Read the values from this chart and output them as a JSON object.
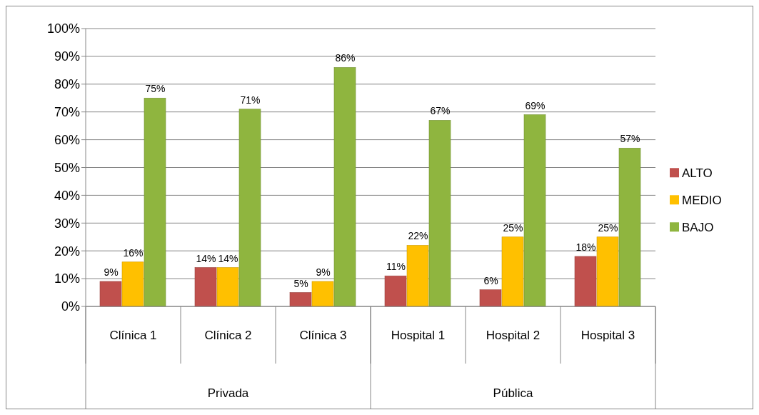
{
  "chart_data": {
    "type": "bar",
    "categories": [
      "Clínica 1",
      "Clínica 2",
      "Clínica 3",
      "Hospital 1",
      "Hospital 2",
      "Hospital 3"
    ],
    "series": [
      {
        "name": "ALTO",
        "color": "#c0504d",
        "values": [
          9,
          14,
          5,
          11,
          6,
          18
        ],
        "value_labels": [
          "9%",
          "14%",
          "5%",
          "11%",
          "6%",
          "18%"
        ]
      },
      {
        "name": "MEDIO",
        "color": "#ffc000",
        "values": [
          16,
          14,
          9,
          22,
          25,
          25
        ],
        "value_labels": [
          "16%",
          "14%",
          "9%",
          "22%",
          "25%",
          "25%"
        ]
      },
      {
        "name": "BAJO",
        "color": "#8fb53f",
        "values": [
          75,
          71,
          86,
          67,
          69,
          57
        ],
        "value_labels": [
          "75%",
          "71%",
          "86%",
          "67%",
          "69%",
          "57%"
        ]
      }
    ],
    "ylim": [
      0,
      100
    ],
    "yticks": [
      {
        "value": 0,
        "label": "0%"
      },
      {
        "value": 10,
        "label": "10%"
      },
      {
        "value": 20,
        "label": "20%"
      },
      {
        "value": 30,
        "label": "30%"
      },
      {
        "value": 40,
        "label": "40%"
      },
      {
        "value": 50,
        "label": "50%"
      },
      {
        "value": 60,
        "label": "60%"
      },
      {
        "value": 70,
        "label": "70%"
      },
      {
        "value": 80,
        "label": "80%"
      },
      {
        "value": 90,
        "label": "90%"
      },
      {
        "value": 100,
        "label": "100%"
      }
    ],
    "annotations": [
      "Privada",
      "Pública"
    ],
    "grid": "y",
    "legend": "right"
  }
}
